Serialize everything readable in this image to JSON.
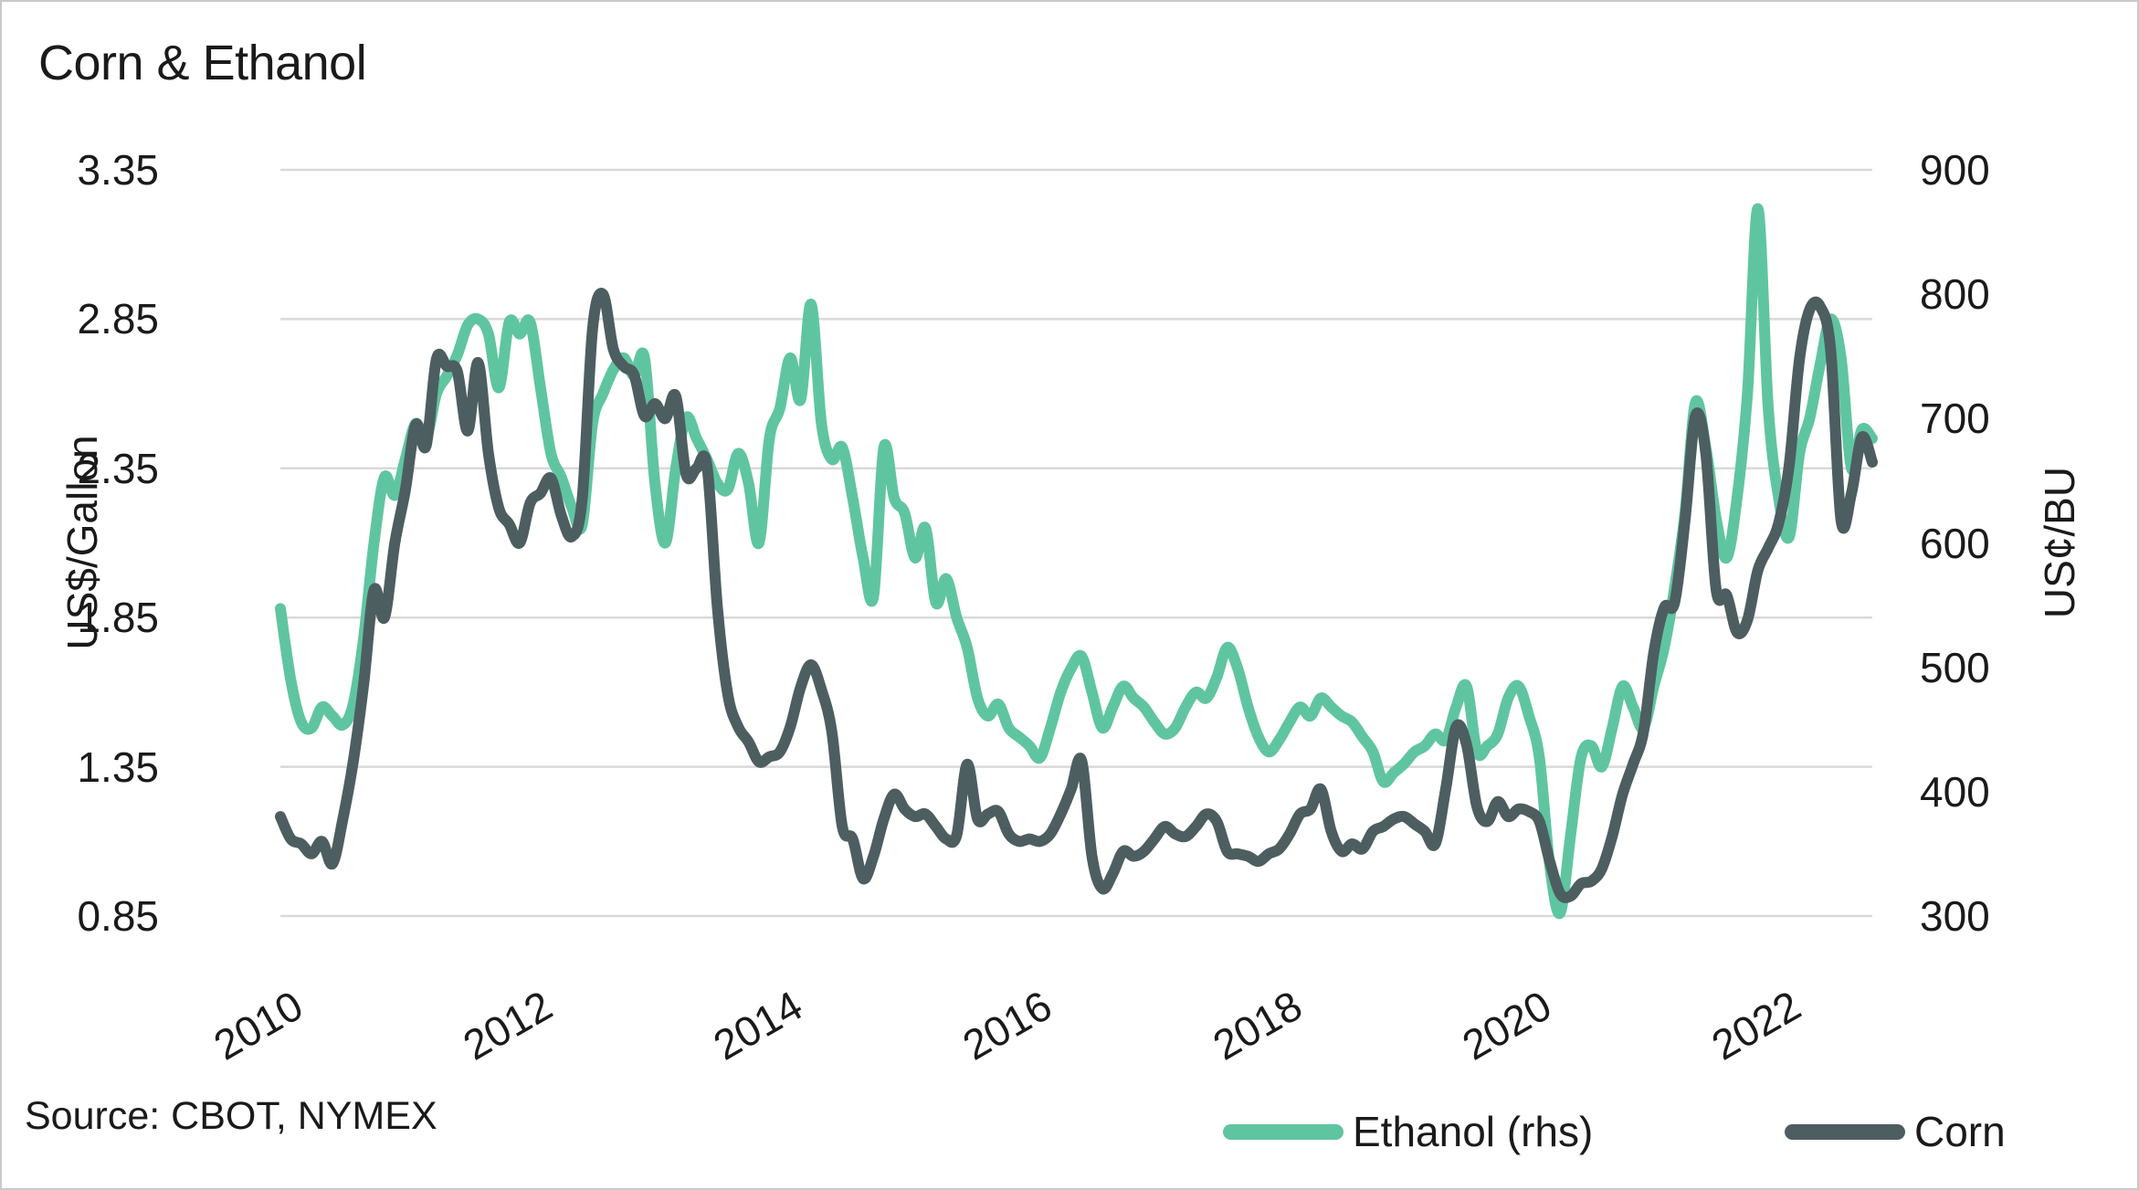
{
  "title": "Corn & Ethanol",
  "source": "Source: CBOT, NYMEX",
  "colors": {
    "ethanol": "#5fc5a1",
    "corn": "#4d5e60",
    "grid": "#d9d9d9",
    "text": "#1a1a1a",
    "background": "#ffffff"
  },
  "chart_data": {
    "type": "line",
    "title": "Corn & Ethanol",
    "freq": "monthly",
    "x_start": "2010-01",
    "x_end": "2022-10",
    "grid": "horizontal",
    "legend_position": "bottom",
    "x_tick_labels": [
      "2010",
      "2012",
      "2014",
      "2016",
      "2018",
      "2020",
      "2022"
    ],
    "x_tick_month_index": [
      0,
      24,
      48,
      72,
      96,
      120,
      144
    ],
    "left_axis": {
      "label": "US$/Gallon",
      "range": [
        0.85,
        3.35
      ],
      "ticks": [
        "3.35",
        "2.85",
        "2.35",
        "1.85",
        "1.35",
        "0.85"
      ]
    },
    "right_axis": {
      "label": "US¢/BU",
      "range": [
        300,
        900
      ],
      "ticks": [
        "900",
        "800",
        "700",
        "600",
        "500",
        "400",
        "300"
      ]
    },
    "series": [
      {
        "name": "Ethanol (rhs)",
        "axis": "left",
        "unit": "US$/Gallon",
        "color": "#5fc5a1",
        "values": [
          1.88,
          1.64,
          1.5,
          1.48,
          1.55,
          1.52,
          1.49,
          1.56,
          1.78,
          2.1,
          2.32,
          2.26,
          2.38,
          2.5,
          2.45,
          2.6,
          2.66,
          2.73,
          2.83,
          2.85,
          2.8,
          2.62,
          2.84,
          2.8,
          2.84,
          2.62,
          2.4,
          2.32,
          2.22,
          2.16,
          2.5,
          2.6,
          2.68,
          2.72,
          2.66,
          2.72,
          2.3,
          2.1,
          2.35,
          2.52,
          2.45,
          2.38,
          2.3,
          2.28,
          2.4,
          2.3,
          2.1,
          2.45,
          2.55,
          2.72,
          2.58,
          2.9,
          2.5,
          2.38,
          2.42,
          2.25,
          2.05,
          1.92,
          2.42,
          2.25,
          2.2,
          2.05,
          2.15,
          1.9,
          1.98,
          1.85,
          1.75,
          1.58,
          1.52,
          1.56,
          1.48,
          1.45,
          1.42,
          1.38,
          1.48,
          1.6,
          1.68,
          1.72,
          1.6,
          1.48,
          1.55,
          1.62,
          1.58,
          1.55,
          1.5,
          1.46,
          1.48,
          1.55,
          1.6,
          1.58,
          1.65,
          1.75,
          1.68,
          1.55,
          1.45,
          1.4,
          1.44,
          1.5,
          1.55,
          1.52,
          1.58,
          1.55,
          1.52,
          1.5,
          1.45,
          1.4,
          1.3,
          1.33,
          1.36,
          1.4,
          1.42,
          1.46,
          1.44,
          1.55,
          1.62,
          1.4,
          1.42,
          1.46,
          1.58,
          1.62,
          1.52,
          1.38,
          1.02,
          0.86,
          1.12,
          1.38,
          1.42,
          1.35,
          1.48,
          1.62,
          1.55,
          1.48,
          1.62,
          1.75,
          1.95,
          2.2,
          2.57,
          2.42,
          2.18,
          2.05,
          2.25,
          2.6,
          3.22,
          2.55,
          2.25,
          2.12,
          2.4,
          2.52,
          2.7,
          2.85,
          2.72,
          2.35,
          2.48,
          2.45
        ]
      },
      {
        "name": "Corn",
        "axis": "right",
        "unit": "US¢/BU",
        "color": "#4d5e60",
        "values": [
          380,
          362,
          358,
          350,
          360,
          342,
          378,
          424,
          486,
          562,
          540,
          600,
          642,
          695,
          678,
          748,
          742,
          738,
          690,
          745,
          672,
          628,
          615,
          600,
          632,
          640,
          652,
          622,
          605,
          635,
          772,
          800,
          756,
          742,
          735,
          702,
          712,
          700,
          718,
          655,
          660,
          662,
          548,
          478,
          452,
          440,
          424,
          428,
          432,
          452,
          484,
          502,
          482,
          448,
          372,
          362,
          330,
          348,
          378,
          398,
          386,
          380,
          382,
          372,
          362,
          365,
          422,
          378,
          382,
          384,
          366,
          360,
          362,
          360,
          366,
          382,
          402,
          425,
          348,
          322,
          334,
          352,
          348,
          352,
          362,
          372,
          366,
          364,
          372,
          382,
          376,
          352,
          350,
          348,
          344,
          350,
          354,
          366,
          382,
          386,
          402,
          368,
          352,
          358,
          354,
          368,
          372,
          378,
          380,
          374,
          368,
          358,
          402,
          452,
          438,
          388,
          376,
          392,
          380,
          386,
          384,
          376,
          344,
          318,
          316,
          326,
          328,
          338,
          364,
          398,
          422,
          448,
          512,
          548,
          552,
          618,
          702,
          672,
          562,
          558,
          528,
          538,
          578,
          596,
          616,
          662,
          748,
          788,
          790,
          755,
          618,
          640,
          685,
          665
        ]
      }
    ]
  },
  "legend": {
    "items": [
      {
        "label": "Ethanol (rhs)"
      },
      {
        "label": "Corn"
      }
    ]
  }
}
